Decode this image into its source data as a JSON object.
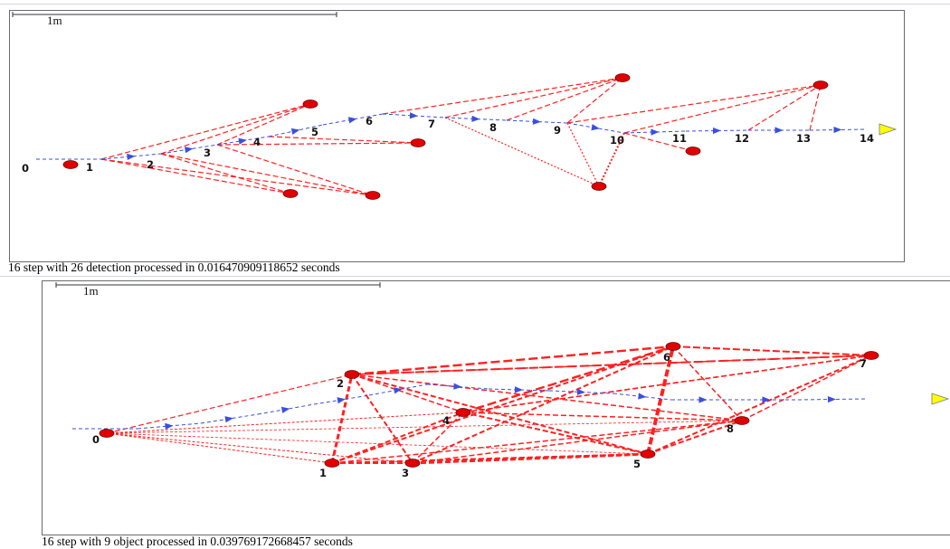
{
  "top": {
    "scale_label": "1m",
    "caption": "16 step with 26 detection processed in 0.016470909118652 seconds",
    "colors": {
      "trajectory": "#3a4fe0",
      "link": "#ff2020",
      "landmark": "#e00000",
      "goal": "#ffff00"
    },
    "pose_labels": [
      "0",
      "1",
      "2",
      "3",
      "4",
      "5",
      "6",
      "7",
      "8",
      "9",
      "10",
      "11",
      "12",
      "13",
      "14"
    ]
  },
  "bottom": {
    "scale_label": "1m",
    "caption": "16 step with 9 object processed in 0.039769172668457 seconds",
    "colors": {
      "trajectory": "#3a4fe0",
      "link": "#ff2020",
      "landmark": "#e00000",
      "goal": "#ffff00"
    },
    "landmark_labels": [
      "0",
      "1",
      "2",
      "3",
      "4",
      "5",
      "6",
      "7",
      "8"
    ]
  }
}
